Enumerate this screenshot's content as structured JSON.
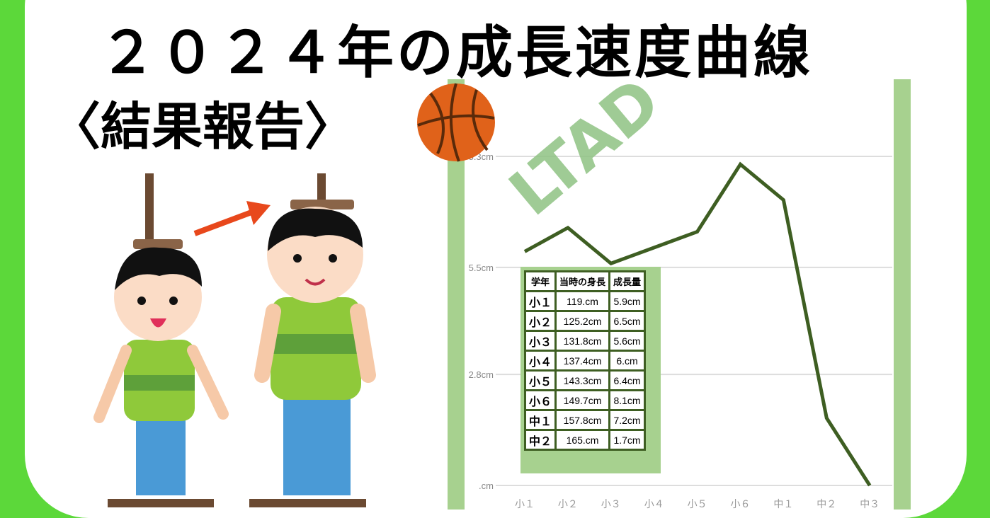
{
  "title": "２０２４年の成長速度曲線",
  "subtitle": "〈結果報告〉",
  "watermark": "LTAD",
  "colors": {
    "background": "#5cd83a",
    "line": "#3e5e22",
    "accent_bar": "#a7d18f",
    "ball": "#e0621a"
  },
  "icons": [
    "basketball-icon",
    "boy-illustration",
    "height-measure-illustration",
    "arrow-icon"
  ],
  "chart_data": {
    "type": "line",
    "categories": [
      "小１",
      "小２",
      "小３",
      "小４",
      "小５",
      "小６",
      "中１",
      "中２",
      "中３"
    ],
    "values": [
      5.9,
      6.5,
      5.6,
      6.0,
      6.4,
      8.1,
      7.2,
      1.7,
      0
    ],
    "y_ticks": [
      {
        "value": 0,
        "label": ".cm"
      },
      {
        "value": 2.8,
        "label": "2.8cm"
      },
      {
        "value": 5.5,
        "label": "5.5cm"
      },
      {
        "value": 8.3,
        "label": "8.3cm"
      }
    ],
    "ylim": [
      0,
      8.3
    ],
    "grid": true
  },
  "table": {
    "headers": [
      "学年",
      "当時の身長",
      "成長量"
    ],
    "rows": [
      [
        "小１",
        "119.cm",
        "5.9cm"
      ],
      [
        "小２",
        "125.2cm",
        "6.5cm"
      ],
      [
        "小３",
        "131.8cm",
        "5.6cm"
      ],
      [
        "小４",
        "137.4cm",
        "6.cm"
      ],
      [
        "小５",
        "143.3cm",
        "6.4cm"
      ],
      [
        "小６",
        "149.7cm",
        "8.1cm"
      ],
      [
        "中１",
        "157.8cm",
        "7.2cm"
      ],
      [
        "中２",
        "165.cm",
        "1.7cm"
      ]
    ]
  }
}
